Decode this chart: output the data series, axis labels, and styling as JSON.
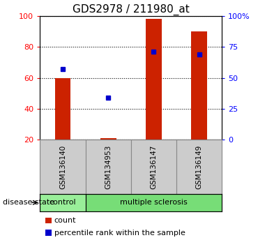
{
  "title": "GDS2978 / 211980_at",
  "samples": [
    "GSM136140",
    "GSM134953",
    "GSM136147",
    "GSM136149"
  ],
  "bar_values": [
    60,
    21,
    98,
    90
  ],
  "percentile_values": [
    57,
    34,
    71,
    69
  ],
  "ylim_left": [
    20,
    100
  ],
  "ylim_right": [
    0,
    100
  ],
  "yticks_left": [
    20,
    40,
    60,
    80,
    100
  ],
  "yticks_right": [
    0,
    25,
    50,
    75,
    100
  ],
  "ytick_labels_right": [
    "0",
    "25",
    "50",
    "75",
    "100%"
  ],
  "bar_color": "#cc2200",
  "percentile_color": "#0000cc",
  "bar_bottom": 20,
  "bar_width": 0.35,
  "legend_count_label": "count",
  "legend_percentile_label": "percentile rank within the sample",
  "disease_state_label": "disease state",
  "label_area_color": "#cccccc",
  "label_area_border": "#888888",
  "control_color": "#99ee99",
  "ms_color": "#77dd77",
  "fig_width": 3.7,
  "fig_height": 3.54,
  "dpi": 100
}
